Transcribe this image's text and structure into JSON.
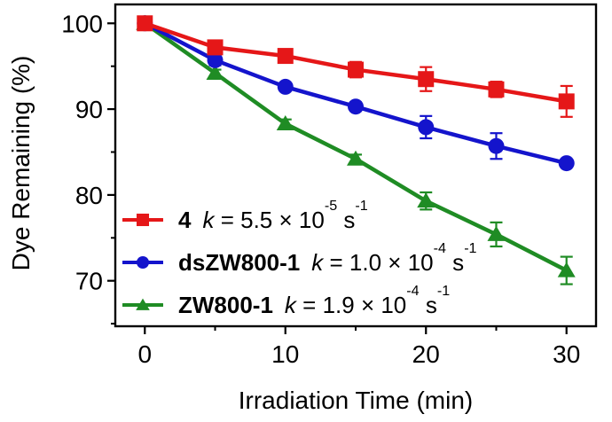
{
  "chart_data": {
    "type": "line",
    "title": "",
    "xlabel": "Irradiation Time (min)",
    "ylabel": "Dye Remaining (%)",
    "grid": false,
    "legend_position": "lower-left-inside",
    "frame": "full-box",
    "frame_color": "#000000",
    "background_color": "#ffffff",
    "x": [
      0,
      5,
      10,
      15,
      20,
      25,
      30
    ],
    "x_range": [
      -2.1,
      32.1
    ],
    "y_range": [
      64.7,
      102.2
    ],
    "x_ticks": {
      "major": [
        0,
        10,
        20,
        30
      ],
      "minor": [
        5,
        15,
        25
      ]
    },
    "y_ticks": {
      "major": [
        70,
        80,
        90,
        100
      ],
      "minor": [
        65,
        75,
        85,
        95
      ]
    },
    "series": [
      {
        "name": "4",
        "marker": "square",
        "color": "#e51718",
        "values": [
          100,
          97.2,
          96.2,
          94.6,
          93.5,
          92.3,
          90.9
        ],
        "errors": [
          0,
          0.8,
          0.7,
          0.9,
          1.4,
          0.9,
          1.8
        ],
        "k_symbol": "k",
        "k_eq": " = ",
        "k_coeff": "5.5",
        "k_times": " × 10",
        "k_exp": "-5",
        "k_unit": " s",
        "k_unit_exp": "-1"
      },
      {
        "name": "dsZW800-1",
        "marker": "circle",
        "color": "#1414cc",
        "values": [
          100,
          95.7,
          92.6,
          90.3,
          87.9,
          85.7,
          83.7
        ],
        "errors": [
          0,
          0.6,
          0.4,
          0.5,
          1.3,
          1.5,
          0.4
        ],
        "k_symbol": "k",
        "k_eq": " = ",
        "k_coeff": "1.0",
        "k_times": " × 10",
        "k_exp": "-4",
        "k_unit": " s",
        "k_unit_exp": "-1"
      },
      {
        "name": "ZW800-1",
        "marker": "triangle",
        "color": "#1f8c24",
        "values": [
          100,
          94.2,
          88.3,
          84.2,
          79.3,
          75.4,
          71.2
        ],
        "errors": [
          0,
          0.4,
          0.5,
          0.5,
          1.0,
          1.4,
          1.6
        ],
        "k_symbol": "k",
        "k_eq": " = ",
        "k_coeff": "1.9",
        "k_times": " × 10",
        "k_exp": "-4",
        "k_unit": " s",
        "k_unit_exp": "-1"
      }
    ]
  }
}
